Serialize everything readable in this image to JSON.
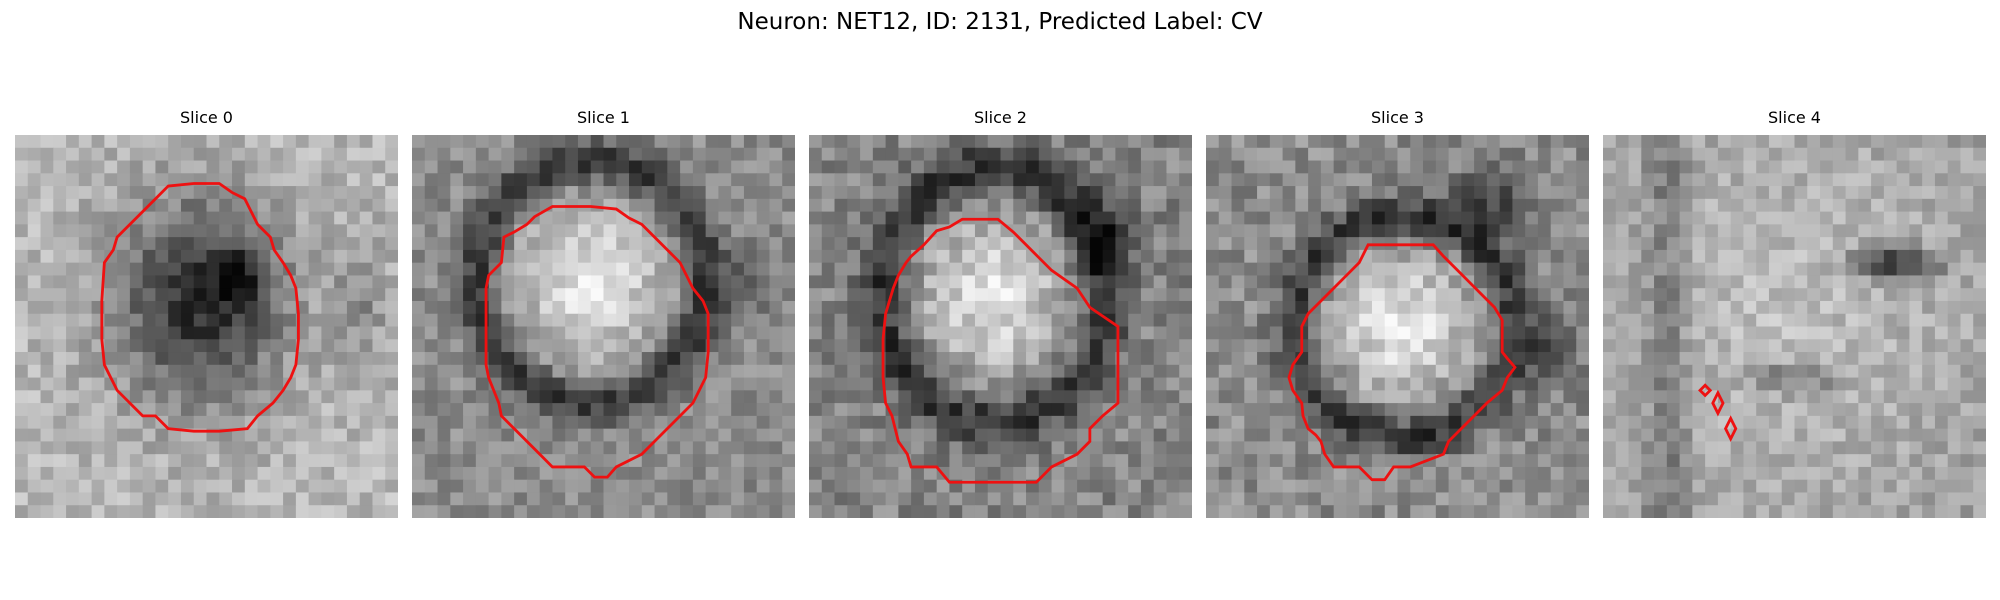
{
  "figure": {
    "title": "Neuron: NET12, ID: 2131, Predicted Label: CV"
  },
  "overlay_color": "#ee1111",
  "panels": [
    {
      "title": "Slice 0",
      "brightness": "dark-center",
      "contour_count": 1
    },
    {
      "title": "Slice 1",
      "brightness": "bright-center",
      "contour_count": 1
    },
    {
      "title": "Slice 2",
      "brightness": "bright-center",
      "contour_count": 1
    },
    {
      "title": "Slice 3",
      "brightness": "bright-center",
      "contour_count": 1
    },
    {
      "title": "Slice 4",
      "brightness": "diffuse",
      "contour_count": 3
    }
  ]
}
